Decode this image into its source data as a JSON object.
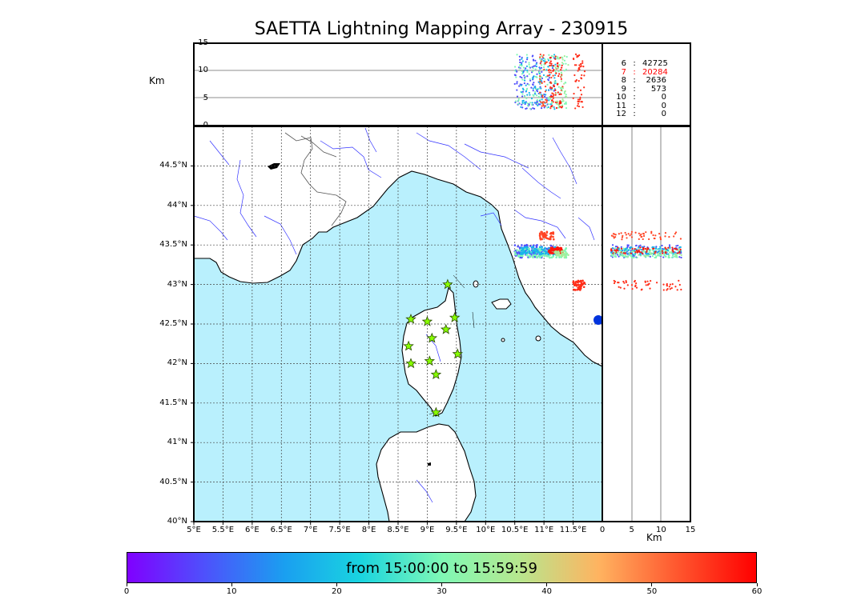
{
  "title": "SAETTA Lightning Mapping Array - 230915",
  "colors": {
    "sea": "#b9f0fd",
    "land": "#ffffff",
    "coast": "#000000",
    "rivers": "#3333ff",
    "borders": "#555555",
    "grid": "#444444",
    "station_fill": "#88ff00",
    "station_stroke": "#2a4a00",
    "highlight_row": "#ff0000"
  },
  "map": {
    "lon_range": [
      5.0,
      12.0
    ],
    "lat_range": [
      40.0,
      45.0
    ],
    "lon_ticks": [
      "5°E",
      "5.5°E",
      "6°E",
      "6.5°E",
      "7°E",
      "7.5°E",
      "8°E",
      "8.5°E",
      "9°E",
      "9.5°E",
      "10°E",
      "10.5°E",
      "11°E",
      "11.5°E"
    ],
    "lat_ticks": [
      "40°N",
      "40.5°N",
      "41°N",
      "41.5°N",
      "42°N",
      "42.5°N",
      "43°N",
      "43.5°N",
      "44°N",
      "44.5°N"
    ],
    "stations": [
      {
        "lon": 9.35,
        "lat": 43.0
      },
      {
        "lon": 8.72,
        "lat": 42.56
      },
      {
        "lon": 9.0,
        "lat": 42.53
      },
      {
        "lon": 9.47,
        "lat": 42.58
      },
      {
        "lon": 9.32,
        "lat": 42.43
      },
      {
        "lon": 9.08,
        "lat": 42.32
      },
      {
        "lon": 8.68,
        "lat": 42.22
      },
      {
        "lon": 9.52,
        "lat": 42.12
      },
      {
        "lon": 9.04,
        "lat": 42.03
      },
      {
        "lon": 8.72,
        "lat": 42.0
      },
      {
        "lon": 9.15,
        "lat": 41.86
      },
      {
        "lon": 9.15,
        "lat": 41.38
      }
    ],
    "sources": [
      {
        "lon": 10.85,
        "lat": 43.42,
        "dlon": 0.35,
        "dlat": 0.08,
        "time_min": 10,
        "n": 120
      },
      {
        "lon": 10.95,
        "lat": 43.4,
        "dlon": 0.45,
        "dlat": 0.06,
        "time_min": 30,
        "n": 140
      },
      {
        "lon": 10.9,
        "lat": 43.43,
        "dlon": 0.3,
        "dlat": 0.05,
        "time_min": 22,
        "n": 80
      },
      {
        "lon": 11.2,
        "lat": 43.43,
        "dlon": 0.12,
        "dlat": 0.04,
        "time_min": 58,
        "n": 60
      },
      {
        "lon": 11.05,
        "lat": 43.62,
        "dlon": 0.12,
        "dlat": 0.05,
        "time_min": 54,
        "n": 50
      },
      {
        "lon": 11.6,
        "lat": 42.99,
        "dlon": 0.1,
        "dlat": 0.06,
        "time_min": 56,
        "n": 50
      },
      {
        "lon": 11.3,
        "lat": 43.38,
        "dlon": 0.12,
        "dlat": 0.04,
        "time_min": 35,
        "n": 30
      }
    ],
    "blue_marker": {
      "lon": 11.92,
      "lat": 42.59
    }
  },
  "altitude_panel": {
    "label": "Km",
    "y_ticks": [
      "0",
      "5",
      "10",
      "15"
    ],
    "y_range": [
      0,
      15
    ]
  },
  "lat_alt_panel": {
    "label": "Km",
    "x_ticks": [
      "0",
      "5",
      "10",
      "15"
    ],
    "x_range": [
      0,
      15
    ]
  },
  "stats": [
    {
      "level": "6",
      "sep": ":",
      "count": "42725",
      "highlight": false
    },
    {
      "level": "7",
      "sep": ":",
      "count": "20284",
      "highlight": true
    },
    {
      "level": "8",
      "sep": ":",
      "count": "2636",
      "highlight": false
    },
    {
      "level": "9",
      "sep": ":",
      "count": "573",
      "highlight": false
    },
    {
      "level": "10",
      "sep": ":",
      "count": "0",
      "highlight": false
    },
    {
      "level": "11",
      "sep": ":",
      "count": "0",
      "highlight": false
    },
    {
      "level": "12",
      "sep": ":",
      "count": "0",
      "highlight": false
    }
  ],
  "colorbar": {
    "label": "from 15:00:00 to 15:59:59",
    "ticks": [
      "0",
      "10",
      "20",
      "30",
      "40",
      "50",
      "60"
    ],
    "range": [
      0,
      60
    ]
  }
}
